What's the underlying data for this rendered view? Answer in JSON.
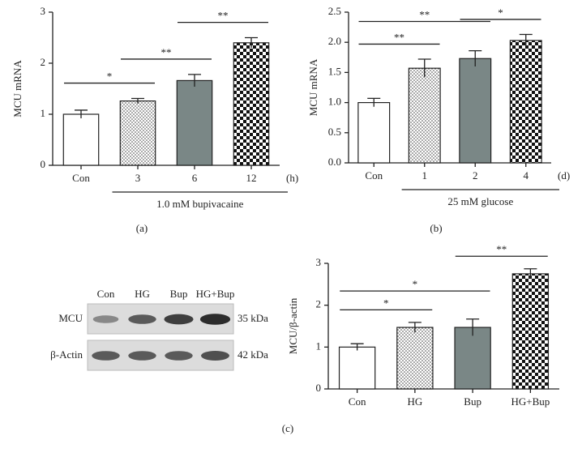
{
  "chart_data": [
    {
      "type": "bar",
      "ylabel": "MCU mRNA",
      "categories": [
        "Con",
        "3",
        "6",
        "12"
      ],
      "x_unit": "(h)",
      "values": [
        1.0,
        1.26,
        1.66,
        2.4
      ],
      "errors": [
        0.08,
        0.05,
        0.12,
        0.1
      ],
      "ylim": [
        0,
        3
      ],
      "yticks": [
        0,
        1,
        2,
        3
      ],
      "fills": [
        "white",
        "dots",
        "gray",
        "checker"
      ],
      "group_label": "1.0 mM bupivacaine",
      "group_start": 1,
      "panel_label": "(a)",
      "significance": [
        {
          "from": 0,
          "to": 1,
          "label": "*"
        },
        {
          "from": 1,
          "to": 2,
          "label": "**"
        },
        {
          "from": 2,
          "to": 3,
          "label": "**"
        }
      ]
    },
    {
      "type": "bar",
      "ylabel": "MCU mRNA",
      "categories": [
        "Con",
        "1",
        "2",
        "4"
      ],
      "x_unit": "(d)",
      "values": [
        1.0,
        1.57,
        1.73,
        2.03
      ],
      "errors": [
        0.07,
        0.15,
        0.13,
        0.1
      ],
      "ylim": [
        0,
        2.5
      ],
      "yticks": [
        {
          "value": 0,
          "label": "0.0"
        },
        {
          "value": 0.5,
          "label": "0.5"
        },
        {
          "value": 1,
          "label": "1.0"
        },
        {
          "value": 1.5,
          "label": "1.5"
        },
        {
          "value": 2,
          "label": "2.0"
        },
        {
          "value": 2.5,
          "label": "2.5"
        }
      ],
      "fills": [
        "white",
        "dots",
        "gray",
        "checker"
      ],
      "group_label": "25 mM glucose",
      "group_start": 1,
      "panel_label": "(b)",
      "significance": [
        {
          "from": 0,
          "to": 1,
          "label": "**"
        },
        {
          "from": 0,
          "to": 2,
          "label": "**"
        },
        {
          "from": 2,
          "to": 3,
          "label": "*"
        }
      ]
    },
    {
      "type": "bar",
      "ylabel": "MCU/β-actin",
      "categories": [
        "Con",
        "HG",
        "Bup",
        "HG+Bup"
      ],
      "values": [
        1.0,
        1.47,
        1.47,
        2.75
      ],
      "errors": [
        0.08,
        0.12,
        0.2,
        0.12
      ],
      "ylim": [
        0,
        3
      ],
      "yticks": [
        0,
        1,
        2,
        3
      ],
      "fills": [
        "white",
        "dots",
        "gray",
        "checker"
      ],
      "panel_label": "(c)",
      "significance": [
        {
          "from": 0,
          "to": 1,
          "label": "*"
        },
        {
          "from": 0,
          "to": 2,
          "label": "*"
        },
        {
          "from": 2,
          "to": 3,
          "label": "**"
        }
      ]
    }
  ],
  "blot": {
    "lanes": [
      "Con",
      "HG",
      "Bup",
      "HG+Bup"
    ],
    "rows": [
      {
        "label": "MCU",
        "size": "35 kDa"
      },
      {
        "label": "β-Actin",
        "size": "42 kDa"
      }
    ]
  }
}
